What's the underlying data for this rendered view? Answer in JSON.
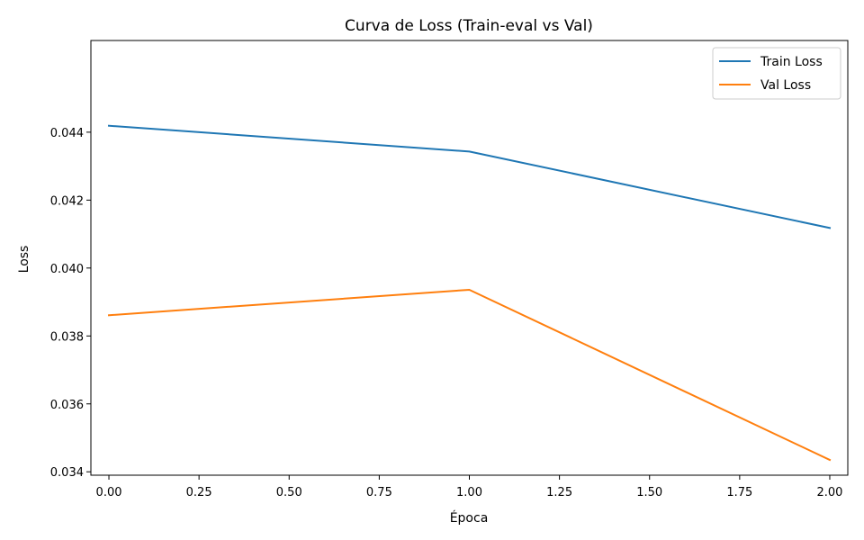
{
  "chart_data": {
    "type": "line",
    "title": "Curva de Loss (Train-eval vs Val)",
    "xlabel": "Época",
    "ylabel": "Loss",
    "x": [
      0,
      1,
      2
    ],
    "xlim": [
      -0.05,
      2.05
    ],
    "ylim": [
      0.0339,
      0.0467
    ],
    "xticks": [
      0.0,
      0.25,
      0.5,
      0.75,
      1.0,
      1.25,
      1.5,
      1.75,
      2.0
    ],
    "xtick_labels": [
      "0.00",
      "0.25",
      "0.50",
      "0.75",
      "1.00",
      "1.25",
      "1.50",
      "1.75",
      "2.00"
    ],
    "yticks": [
      0.034,
      0.036,
      0.038,
      0.04,
      0.042,
      0.044
    ],
    "ytick_labels": [
      "0.034",
      "0.036",
      "0.038",
      "0.040",
      "0.042",
      "0.044"
    ],
    "grid": false,
    "legend_position": "top-right",
    "series": [
      {
        "name": "Train Loss",
        "color": "#1f77b4",
        "values": [
          0.04419,
          0.04343,
          0.04118
        ]
      },
      {
        "name": "Val Loss",
        "color": "#ff7f0e",
        "values": [
          0.03861,
          0.03936,
          0.03435
        ]
      }
    ]
  }
}
